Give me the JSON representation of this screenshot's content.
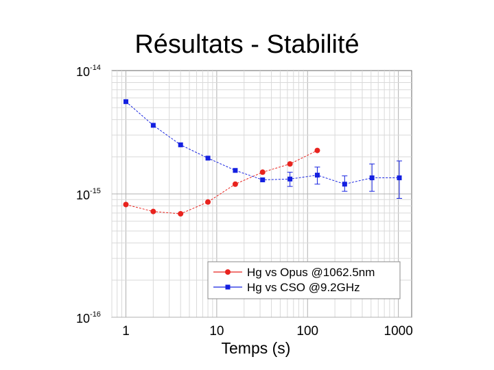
{
  "slide": {
    "title": "Résultats - Stabilité"
  },
  "chart_data": {
    "type": "scatter",
    "xlabel": "Temps (s)",
    "ylabel": "",
    "xscale": "log",
    "yscale": "log",
    "xlim": [
      0.7,
      1400
    ],
    "ylim": [
      1e-16,
      1e-14
    ],
    "x_ticks": [
      "1",
      "10",
      "100",
      "1000"
    ],
    "y_ticks": [
      {
        "base": "10",
        "exp": "-14"
      },
      {
        "base": "10",
        "exp": "-15"
      },
      {
        "base": "10",
        "exp": "-16"
      }
    ],
    "grid": true,
    "legend": "bottom-right",
    "series": [
      {
        "name": "Hg vs Opus @1062.5nm",
        "color": "#e8231e",
        "marker": "circle",
        "line": "dashed",
        "x": [
          1,
          2,
          4,
          8,
          16,
          32,
          64,
          128
        ],
        "y": [
          8.2e-16,
          7.2e-16,
          6.9e-16,
          8.6e-16,
          1.2e-15,
          1.5e-15,
          1.75e-15,
          2.25e-15
        ]
      },
      {
        "name": "Hg vs CSO @9.2GHz",
        "color": "#1420e0",
        "marker": "square",
        "line": "dashed",
        "x": [
          1,
          2,
          4,
          8,
          16,
          32,
          64,
          128,
          256,
          512,
          1024
        ],
        "y": [
          5.6e-15,
          3.6e-15,
          2.5e-15,
          1.95e-15,
          1.55e-15,
          1.3e-15,
          1.32e-15,
          1.42e-15,
          1.2e-15,
          1.35e-15,
          1.35e-15
        ],
        "y_err_low": [
          0,
          0,
          0,
          0,
          0,
          0,
          1.15e-15,
          1.2e-15,
          1.05e-15,
          1.05e-15,
          9.2e-16
        ],
        "y_err_high": [
          0,
          0,
          0,
          0,
          0,
          0,
          1.5e-15,
          1.65e-15,
          1.4e-15,
          1.75e-15,
          1.85e-15
        ]
      }
    ]
  }
}
